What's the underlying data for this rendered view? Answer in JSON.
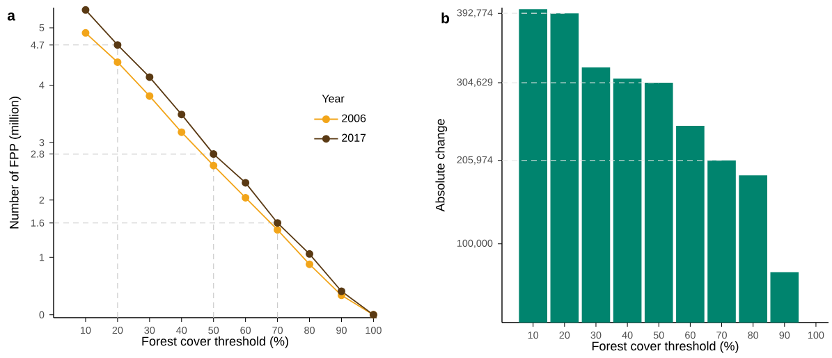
{
  "chart_data": [
    {
      "type": "line",
      "title": "a",
      "xlabel": "Forest cover threshold (%)",
      "ylabel": "Number of FPP (million)",
      "legend_title": "Year",
      "legend": "right",
      "marker": "circle",
      "x": [
        10,
        20,
        30,
        40,
        50,
        60,
        70,
        80,
        90,
        100
      ],
      "series": [
        {
          "name": "2006",
          "color": "#f2a51a",
          "values": [
            4.91,
            4.4,
            3.81,
            3.18,
            2.6,
            2.04,
            1.48,
            0.88,
            0.34,
            0
          ]
        },
        {
          "name": "2017",
          "color": "#5a3a14",
          "values": [
            5.31,
            4.7,
            4.14,
            3.49,
            2.8,
            2.3,
            1.6,
            1.06,
            0.41,
            0
          ]
        }
      ],
      "xlim": [
        0,
        101
      ],
      "ylim": [
        -0.05,
        5.35
      ],
      "xticks": [
        10,
        20,
        30,
        40,
        50,
        60,
        70,
        80,
        90,
        100
      ],
      "yticks": [
        0,
        1,
        1.6,
        2,
        2.8,
        3,
        4,
        4.7,
        5
      ],
      "ref_lines": [
        {
          "axis": "x",
          "value": 20,
          "color": "#cccccc",
          "line_style": "dashed"
        },
        {
          "axis": "x",
          "value": 50,
          "color": "#cccccc",
          "line_style": "dashed"
        },
        {
          "axis": "x",
          "value": 70,
          "color": "#cccccc",
          "line_style": "dashed"
        },
        {
          "axis": "y",
          "value": 4.7,
          "color": "#cccccc",
          "line_style": "dashed"
        },
        {
          "axis": "y",
          "value": 2.8,
          "color": "#cccccc",
          "line_style": "dashed"
        },
        {
          "axis": "y",
          "value": 1.6,
          "color": "#cccccc",
          "line_style": "dashed"
        }
      ]
    },
    {
      "type": "bar",
      "title": "b",
      "xlabel": "Forest cover threshold (%)",
      "ylabel": "Absolute change",
      "color": "#00846e",
      "categories": [
        "10",
        "20",
        "30",
        "40",
        "50",
        "60",
        "70",
        "80",
        "90",
        "100"
      ],
      "values": [
        398000,
        392774,
        324000,
        310000,
        304629,
        250000,
        205974,
        187000,
        64000,
        0
      ],
      "ylim": [
        0,
        400000
      ],
      "yticks": [
        {
          "value": 100000,
          "label": "100,000"
        },
        {
          "value": 205974,
          "label": "205,974"
        },
        {
          "value": 304629,
          "label": "304,629"
        },
        {
          "value": 392774,
          "label": "392,774"
        }
      ],
      "ref_lines": [
        {
          "axis": "y",
          "value": 392774,
          "color": "#e6e6e6",
          "line_style": "dashed"
        },
        {
          "axis": "y",
          "value": 304629,
          "color": "#e6e6e6",
          "line_style": "dashed"
        },
        {
          "axis": "y",
          "value": 205974,
          "color": "#e6e6e6",
          "line_style": "dashed"
        }
      ]
    }
  ]
}
